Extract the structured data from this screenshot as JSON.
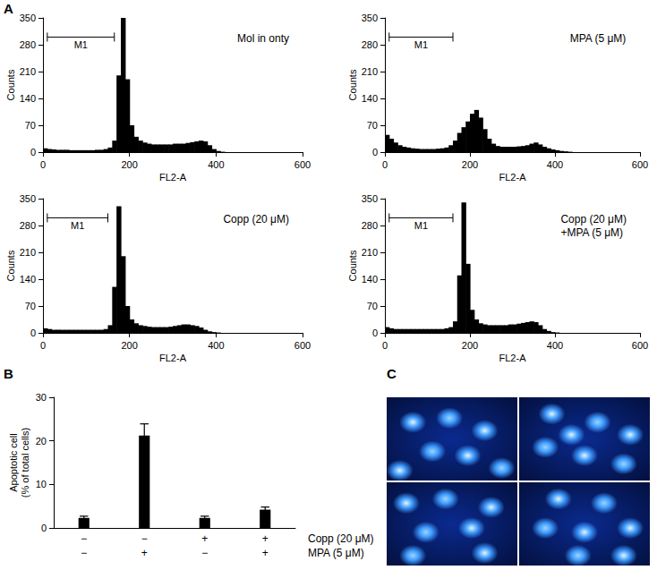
{
  "chart_data": [
    {
      "type": "histogram",
      "panel_label": "A",
      "title": "Mol in onty",
      "xlabel": "FL2-A",
      "ylabel": "Counts",
      "bins": [
        0,
        10,
        20,
        30,
        40,
        50,
        60,
        70,
        80,
        90,
        100,
        110,
        120,
        130,
        140,
        150,
        160,
        170,
        180,
        190,
        200,
        210,
        220,
        230,
        240,
        250,
        260,
        270,
        280,
        290,
        300,
        310,
        320,
        330,
        340,
        350,
        360,
        370,
        380,
        390,
        400,
        410,
        420,
        430,
        440,
        450,
        460,
        470,
        480,
        490,
        500,
        510,
        520,
        530,
        540,
        550,
        560,
        570,
        580,
        590,
        600
      ],
      "counts": [
        10,
        8,
        7,
        6,
        6,
        6,
        5,
        5,
        5,
        5,
        5,
        5,
        6,
        6,
        8,
        12,
        30,
        200,
        350,
        190,
        70,
        40,
        30,
        25,
        22,
        20,
        20,
        20,
        20,
        20,
        22,
        22,
        22,
        24,
        26,
        28,
        30,
        28,
        18,
        8,
        3,
        1,
        0,
        0,
        0,
        0,
        0,
        0,
        0,
        0,
        0,
        0,
        0,
        0,
        0,
        0,
        0,
        0,
        0,
        0
      ],
      "color": "#000000",
      "xlim": [
        0,
        600
      ],
      "xticks": [
        0,
        200,
        400,
        600
      ],
      "ylim": [
        0,
        350
      ],
      "yticks": [
        0,
        70,
        140,
        210,
        280,
        350
      ],
      "grid": false,
      "annotations": [
        {
          "text": "M1",
          "x": [
            10,
            165
          ],
          "y": 300
        }
      ]
    },
    {
      "type": "histogram",
      "title": "MPA (5 μM)",
      "xlabel": "FL2-A",
      "ylabel": "Counts",
      "bins": [
        0,
        10,
        20,
        30,
        40,
        50,
        60,
        70,
        80,
        90,
        100,
        110,
        120,
        130,
        140,
        150,
        160,
        170,
        180,
        190,
        200,
        210,
        220,
        230,
        240,
        250,
        260,
        270,
        280,
        290,
        300,
        310,
        320,
        330,
        340,
        350,
        360,
        370,
        380,
        390,
        400,
        410,
        420,
        430,
        440,
        450,
        460,
        470,
        480,
        490,
        500,
        510,
        520,
        530,
        540,
        550,
        560,
        570,
        580,
        590,
        600
      ],
      "counts": [
        45,
        35,
        25,
        18,
        14,
        12,
        10,
        9,
        8,
        8,
        8,
        8,
        9,
        10,
        12,
        18,
        30,
        50,
        65,
        80,
        100,
        110,
        90,
        60,
        35,
        22,
        16,
        14,
        14,
        14,
        14,
        15,
        16,
        18,
        22,
        25,
        20,
        14,
        10,
        7,
        5,
        3,
        2,
        1,
        0,
        0,
        0,
        0,
        0,
        0,
        0,
        0,
        0,
        0,
        0,
        0,
        0,
        0,
        0,
        0
      ],
      "color": "#000000",
      "xlim": [
        0,
        600
      ],
      "xticks": [
        0,
        200,
        400,
        600
      ],
      "ylim": [
        0,
        350
      ],
      "yticks": [
        0,
        70,
        140,
        210,
        280,
        350
      ],
      "grid": false,
      "annotations": [
        {
          "text": "M1",
          "x": [
            10,
            160
          ],
          "y": 300
        }
      ]
    },
    {
      "type": "histogram",
      "title": "Copp (20 μM)",
      "xlabel": "FL2-A",
      "ylabel": "Counts",
      "bins": [
        0,
        10,
        20,
        30,
        40,
        50,
        60,
        70,
        80,
        90,
        100,
        110,
        120,
        130,
        140,
        150,
        160,
        170,
        180,
        190,
        200,
        210,
        220,
        230,
        240,
        250,
        260,
        270,
        280,
        290,
        300,
        310,
        320,
        330,
        340,
        350,
        360,
        370,
        380,
        390,
        400,
        410,
        420,
        430,
        440,
        450,
        460,
        470,
        480,
        490,
        500,
        510,
        520,
        530,
        540,
        550,
        560,
        570,
        580,
        590,
        600
      ],
      "counts": [
        12,
        10,
        8,
        8,
        8,
        8,
        8,
        8,
        8,
        8,
        8,
        8,
        8,
        8,
        10,
        20,
        120,
        330,
        200,
        70,
        35,
        25,
        20,
        18,
        16,
        15,
        15,
        15,
        15,
        16,
        18,
        20,
        22,
        22,
        20,
        18,
        14,
        8,
        4,
        2,
        1,
        0,
        0,
        0,
        0,
        0,
        0,
        0,
        0,
        0,
        0,
        0,
        0,
        0,
        0,
        0,
        0,
        0,
        0,
        0
      ],
      "color": "#000000",
      "xlim": [
        0,
        600
      ],
      "xticks": [
        0,
        200,
        400,
        600
      ],
      "ylim": [
        0,
        350
      ],
      "yticks": [
        0,
        70,
        140,
        210,
        280,
        350
      ],
      "grid": false,
      "annotations": [
        {
          "text": "M1",
          "x": [
            10,
            150
          ],
          "y": 300
        }
      ]
    },
    {
      "type": "histogram",
      "title": "Copp (20 μM)\n+MPA (5 μM)",
      "xlabel": "FL2-A",
      "ylabel": "Counts",
      "bins": [
        0,
        10,
        20,
        30,
        40,
        50,
        60,
        70,
        80,
        90,
        100,
        110,
        120,
        130,
        140,
        150,
        160,
        170,
        180,
        190,
        200,
        210,
        220,
        230,
        240,
        250,
        260,
        270,
        280,
        290,
        300,
        310,
        320,
        330,
        340,
        350,
        360,
        370,
        380,
        390,
        400,
        410,
        420,
        430,
        440,
        450,
        460,
        470,
        480,
        490,
        500,
        510,
        520,
        530,
        540,
        550,
        560,
        570,
        580,
        590,
        600
      ],
      "counts": [
        15,
        12,
        10,
        10,
        10,
        10,
        10,
        10,
        10,
        10,
        10,
        10,
        10,
        10,
        12,
        15,
        30,
        150,
        340,
        180,
        60,
        35,
        25,
        22,
        20,
        20,
        20,
        20,
        20,
        22,
        22,
        24,
        26,
        28,
        30,
        28,
        20,
        10,
        5,
        2,
        1,
        0,
        0,
        0,
        0,
        0,
        0,
        0,
        0,
        0,
        0,
        0,
        0,
        0,
        0,
        0,
        0,
        0,
        0,
        0
      ],
      "color": "#000000",
      "xlim": [
        0,
        600
      ],
      "xticks": [
        0,
        200,
        400,
        600
      ],
      "ylim": [
        0,
        350
      ],
      "yticks": [
        0,
        70,
        140,
        210,
        280,
        350
      ],
      "grid": false,
      "annotations": [
        {
          "text": "M1",
          "x": [
            10,
            160
          ],
          "y": 300
        }
      ]
    },
    {
      "type": "bar",
      "panel_label": "B",
      "categories": [
        null,
        null,
        null,
        null
      ],
      "values": [
        2.3,
        21.2,
        2.3,
        4.2
      ],
      "errors": [
        0.4,
        2.7,
        0.4,
        0.6
      ],
      "color": "#000000",
      "ylabel": "Apoptotic cell\n(% of total cells)",
      "ylim": [
        0,
        30
      ],
      "yticks": [
        0,
        10,
        20,
        30
      ],
      "grid": false,
      "treatments": [
        {
          "name": "Copp (20 μM)",
          "levels": [
            "−",
            "−",
            "+",
            "+"
          ]
        },
        {
          "name": "MPA (5 μM)",
          "levels": [
            "−",
            "+",
            "−",
            "+"
          ]
        }
      ]
    }
  ],
  "image_panel": {
    "panel_label": "C",
    "rows": 2,
    "columns": 2
  }
}
